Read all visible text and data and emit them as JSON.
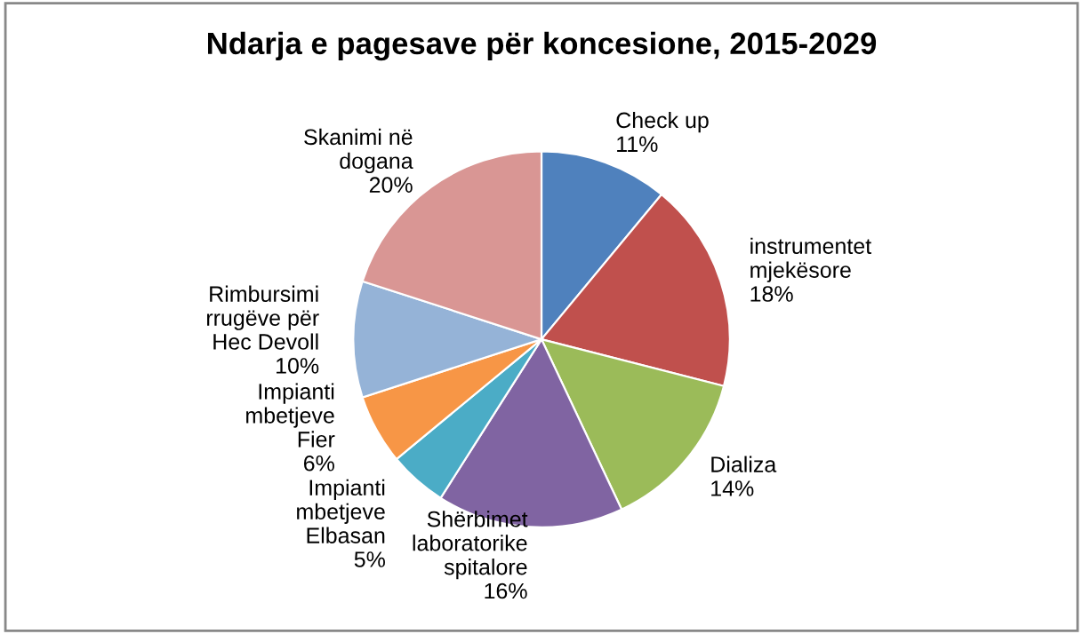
{
  "chart_data": {
    "type": "pie",
    "title": "Ndarja e pagesave për koncesione, 2015-2029",
    "categories": [
      "Check up",
      "instrumentet mjekësore",
      "Dializa",
      "Shërbimet laboratorike spitalore",
      "Impianti mbetjeve Elbasan",
      "Impianti mbetjeve Fier",
      "Rimbursimi rrugëve për Hec Devoll",
      "Skanimi në dogana"
    ],
    "values": [
      11,
      18,
      14,
      16,
      5,
      6,
      10,
      20
    ],
    "value_labels": [
      "11%",
      "18%",
      "14%",
      "16%",
      "5%",
      "6%",
      "10%",
      "20%"
    ],
    "colors": [
      "#4f81bd",
      "#c0504d",
      "#9bbb59",
      "#8064a2",
      "#4bacc6",
      "#f79646",
      "#95b3d7",
      "#d99694"
    ]
  }
}
